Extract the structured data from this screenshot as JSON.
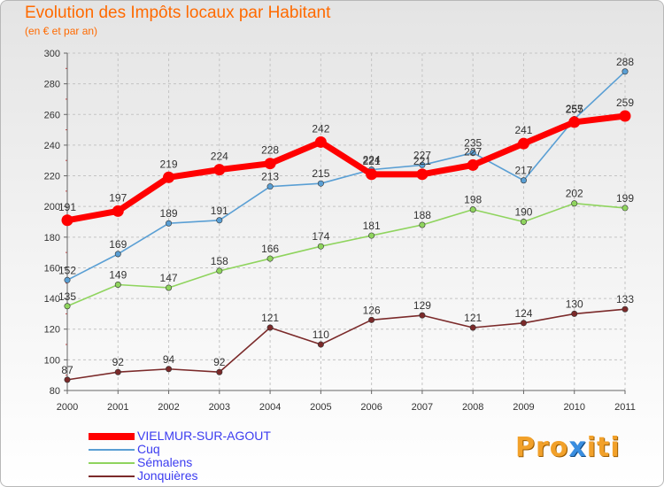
{
  "chart_data": {
    "type": "line",
    "title": "Evolution des Impôts locaux par Habitant",
    "subtitle": "(en € et par an)",
    "x": [
      "2000",
      "2001",
      "2002",
      "2003",
      "2004",
      "2005",
      "2006",
      "2007",
      "2008",
      "2009",
      "2010",
      "2011"
    ],
    "ylim": [
      80,
      300
    ],
    "yticks": [
      80,
      100,
      120,
      140,
      160,
      180,
      200,
      220,
      240,
      260,
      280,
      300
    ],
    "grid": true,
    "xlabel": "",
    "ylabel": "",
    "series": [
      {
        "name": "Jonquières",
        "color": "#7b2a2a",
        "values": [
          87,
          92,
          94,
          92,
          121,
          110,
          126,
          129,
          121,
          124,
          130,
          133
        ]
      },
      {
        "name": "Sémalens",
        "color": "#8fd45e",
        "values": [
          135,
          149,
          147,
          158,
          166,
          174,
          181,
          188,
          198,
          190,
          202,
          199
        ]
      },
      {
        "name": "Cuq",
        "color": "#5a9fd4",
        "values": [
          152,
          169,
          189,
          191,
          213,
          215,
          224,
          227,
          235,
          217,
          257,
          288
        ]
      },
      {
        "name": "VIELMUR-SUR-AGOUT",
        "color": "#ff0000",
        "values": [
          191,
          197,
          219,
          224,
          228,
          242,
          221,
          221,
          227,
          241,
          255,
          259
        ]
      }
    ],
    "legend_order": [
      "VIELMUR-SUR-AGOUT",
      "Cuq",
      "Sémalens",
      "Jonquières"
    ],
    "legend_position": "bottom-left"
  },
  "logo": {
    "text_before": "Pro",
    "text_x": "x",
    "text_after": "iti"
  }
}
